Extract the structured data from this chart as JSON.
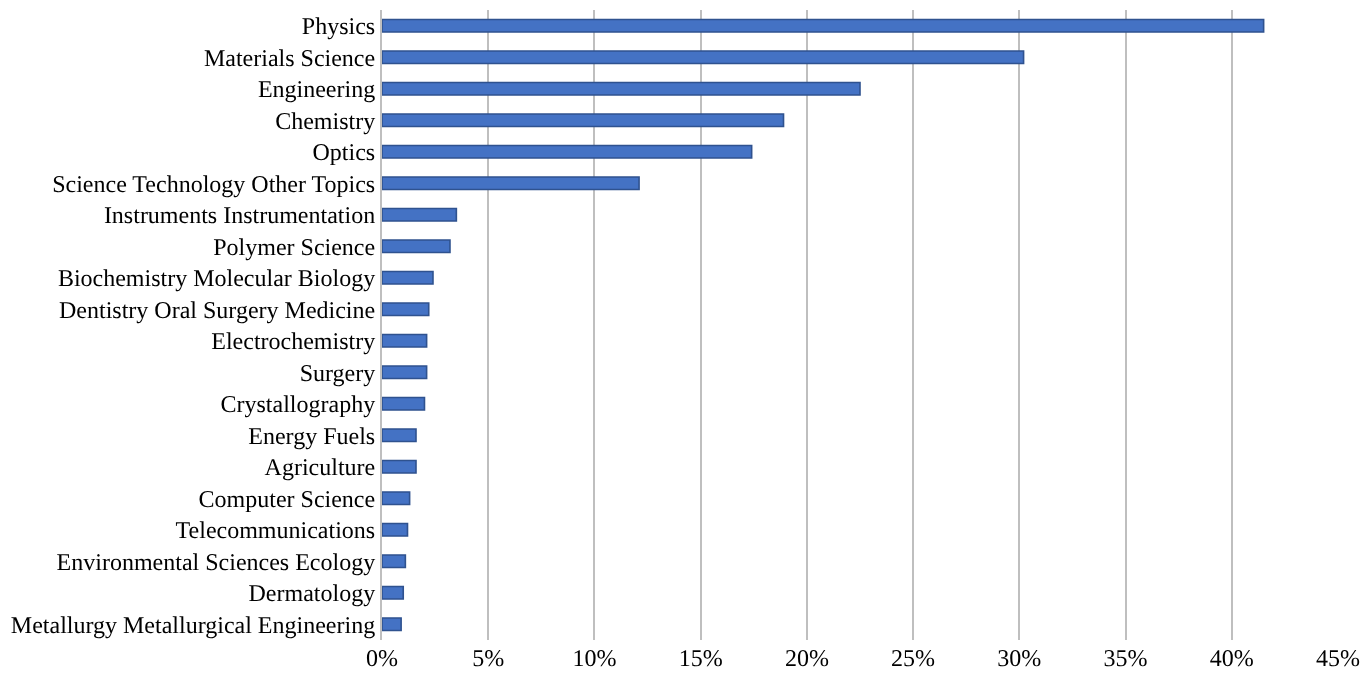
{
  "chart_data": {
    "type": "bar",
    "orientation": "horizontal",
    "categories": [
      "Physics",
      "Materials Science",
      "Engineering",
      "Chemistry",
      "Optics",
      "Science Technology Other Topics",
      "Instruments Instrumentation",
      "Polymer Science",
      "Biochemistry Molecular Biology",
      "Dentistry Oral Surgery Medicine",
      "Electrochemistry",
      "Surgery",
      "Crystallography",
      "Energy Fuels",
      "Agriculture",
      "Computer Science",
      "Telecommunications",
      "Environmental Sciences Ecology",
      "Dermatology",
      "Metallurgy Metallurgical Engineering"
    ],
    "values": [
      41.5,
      30.2,
      22.5,
      18.9,
      17.4,
      12.1,
      3.5,
      3.2,
      2.4,
      2.2,
      2.1,
      2.1,
      2.0,
      1.6,
      1.6,
      1.3,
      1.2,
      1.1,
      1.0,
      0.9
    ],
    "color": "#4472c4",
    "xlim": [
      0,
      45
    ],
    "xticks": [
      {
        "value": 0,
        "label": "0%"
      },
      {
        "value": 5,
        "label": "5%"
      },
      {
        "value": 10,
        "label": "10%"
      },
      {
        "value": 15,
        "label": "15%"
      },
      {
        "value": 20,
        "label": "20%"
      },
      {
        "value": 25,
        "label": "25%"
      },
      {
        "value": 30,
        "label": "30%"
      },
      {
        "value": 35,
        "label": "35%"
      },
      {
        "value": 40,
        "label": "40%"
      },
      {
        "value": 45,
        "label": "45%"
      }
    ],
    "grid": "x",
    "legend": false
  }
}
